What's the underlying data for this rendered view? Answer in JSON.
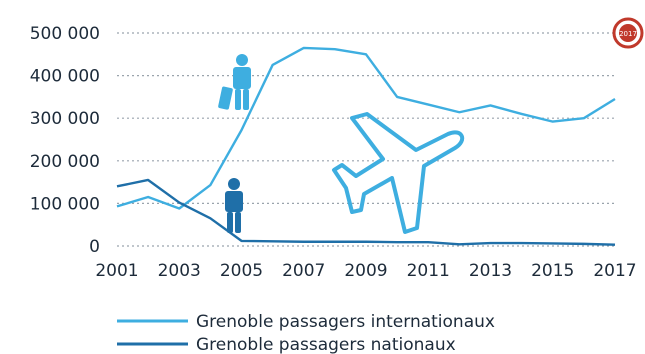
{
  "chart_data": {
    "type": "line",
    "title": "",
    "xlabel": "",
    "ylabel": "",
    "x": [
      2001,
      2002,
      2003,
      2004,
      2005,
      2006,
      2007,
      2008,
      2009,
      2010,
      2011,
      2012,
      2013,
      2014,
      2015,
      2016,
      2017
    ],
    "series": [
      {
        "name": "Grenoble passagers internationaux",
        "color": "#3eaee0",
        "values": [
          93000,
          115000,
          88000,
          143000,
          272000,
          425000,
          465000,
          462000,
          450000,
          350000,
          332000,
          314000,
          330000,
          310000,
          292000,
          300000,
          345000
        ]
      },
      {
        "name": "Grenoble passagers nationaux",
        "color": "#1f6fa8",
        "values": [
          140000,
          155000,
          102000,
          65000,
          12000,
          11000,
          10000,
          10000,
          10000,
          9000,
          9000,
          4000,
          7000,
          7000,
          6000,
          5000,
          3000
        ]
      }
    ],
    "ylim": [
      0,
      500000
    ],
    "yticks": [
      0,
      100000,
      200000,
      300000,
      400000,
      500000
    ],
    "ytick_labels": [
      "0",
      "100 000",
      "200 000",
      "300 000",
      "400 000",
      "500 000"
    ],
    "xticks": [
      2001,
      2003,
      2005,
      2007,
      2009,
      2011,
      2013,
      2015,
      2017
    ],
    "xtick_labels": [
      "2001",
      "2003",
      "2005",
      "2007",
      "2009",
      "2011",
      "2013",
      "2015",
      "2017"
    ],
    "grid": "horizontal dotted",
    "legend": "bottom",
    "badge_text": "2017",
    "icons": [
      "traveler-with-suitcase-icon",
      "traveler-icon",
      "airplane-icon"
    ]
  }
}
